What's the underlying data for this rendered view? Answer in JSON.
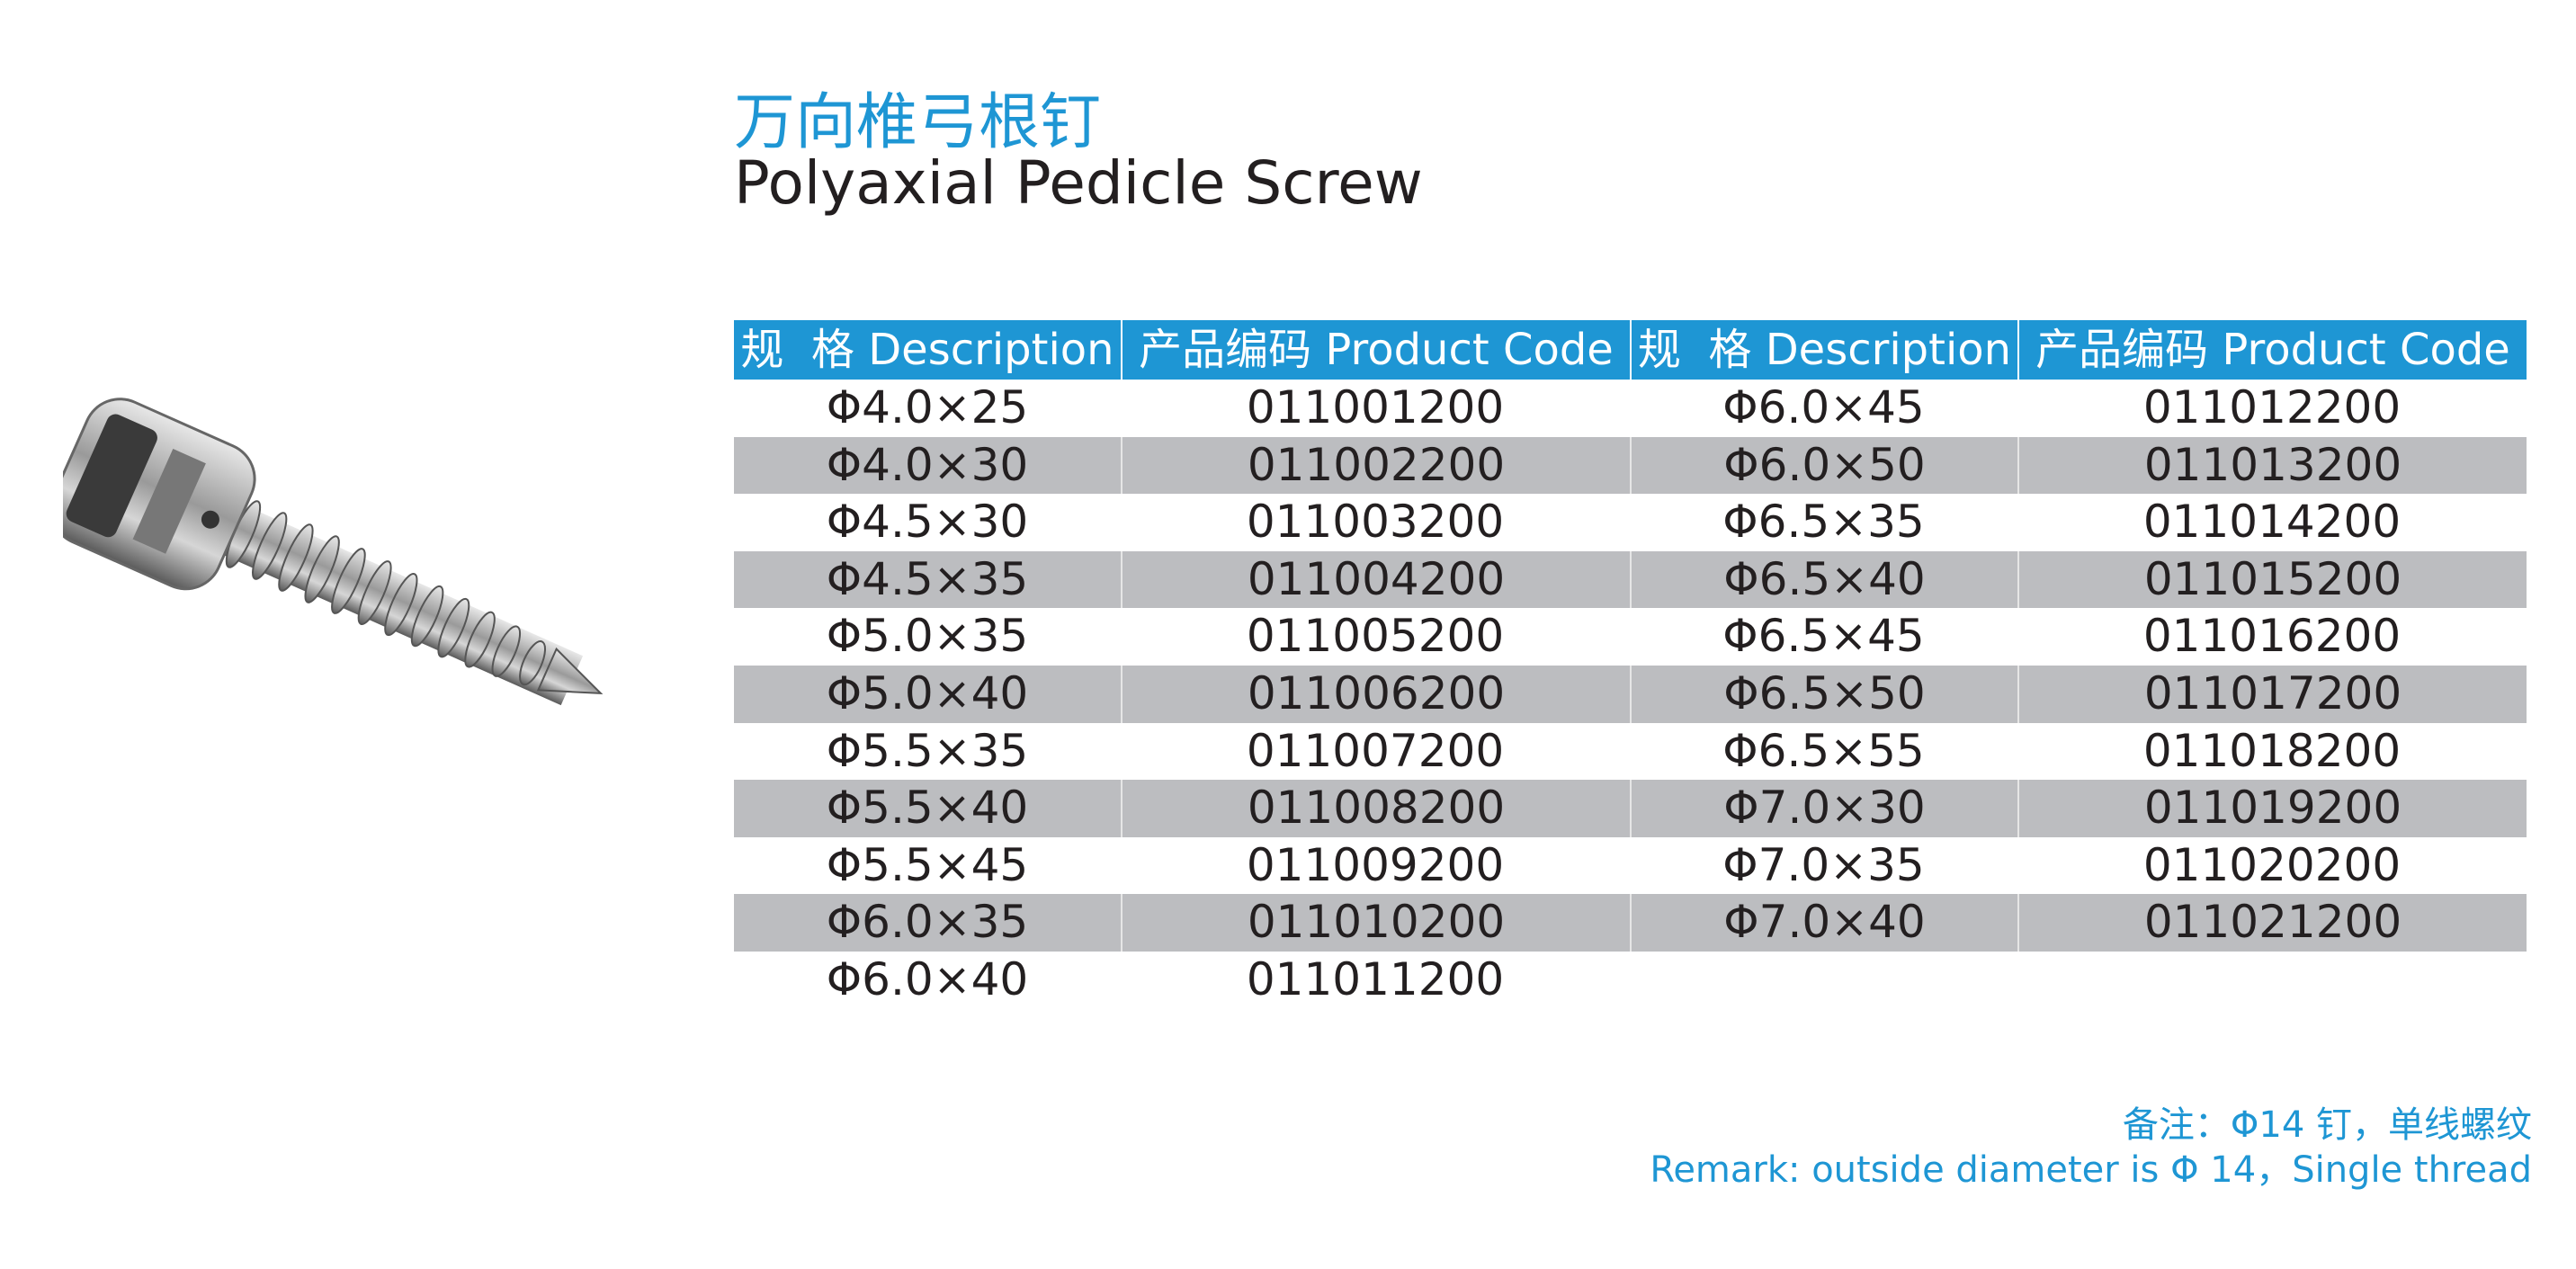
{
  "header": {
    "title": "万向椎弓根钉",
    "subtitle": "Polyaxial Pedicle Screw"
  },
  "table": {
    "columns": [
      "规  格 Description",
      "产品编码 Product Code",
      "规  格 Description",
      "产品编码 Product Code"
    ],
    "rows": [
      [
        "Φ4.0×25",
        "011001200",
        "Φ6.0×45",
        "011012200"
      ],
      [
        "Φ4.0×30",
        "011002200",
        "Φ6.0×50",
        "011013200"
      ],
      [
        "Φ4.5×30",
        "011003200",
        "Φ6.5×35",
        "011014200"
      ],
      [
        "Φ4.5×35",
        "011004200",
        "Φ6.5×40",
        "011015200"
      ],
      [
        "Φ5.0×35",
        "011005200",
        "Φ6.5×45",
        "011016200"
      ],
      [
        "Φ5.0×40",
        "011006200",
        "Φ6.5×50",
        "011017200"
      ],
      [
        "Φ5.5×35",
        "011007200",
        "Φ6.5×55",
        "011018200"
      ],
      [
        "Φ5.5×40",
        "011008200",
        "Φ7.0×30",
        "011019200"
      ],
      [
        "Φ5.5×45",
        "011009200",
        "Φ7.0×35",
        "011020200"
      ],
      [
        "Φ6.0×35",
        "011010200",
        "Φ7.0×40",
        "011021200"
      ],
      [
        "Φ6.0×40",
        "011011200"
      ]
    ]
  },
  "remark": {
    "cn": "备注：Φ14 钉，单线螺纹",
    "en": "Remark: outside diameter is Φ 14，Single thread"
  }
}
